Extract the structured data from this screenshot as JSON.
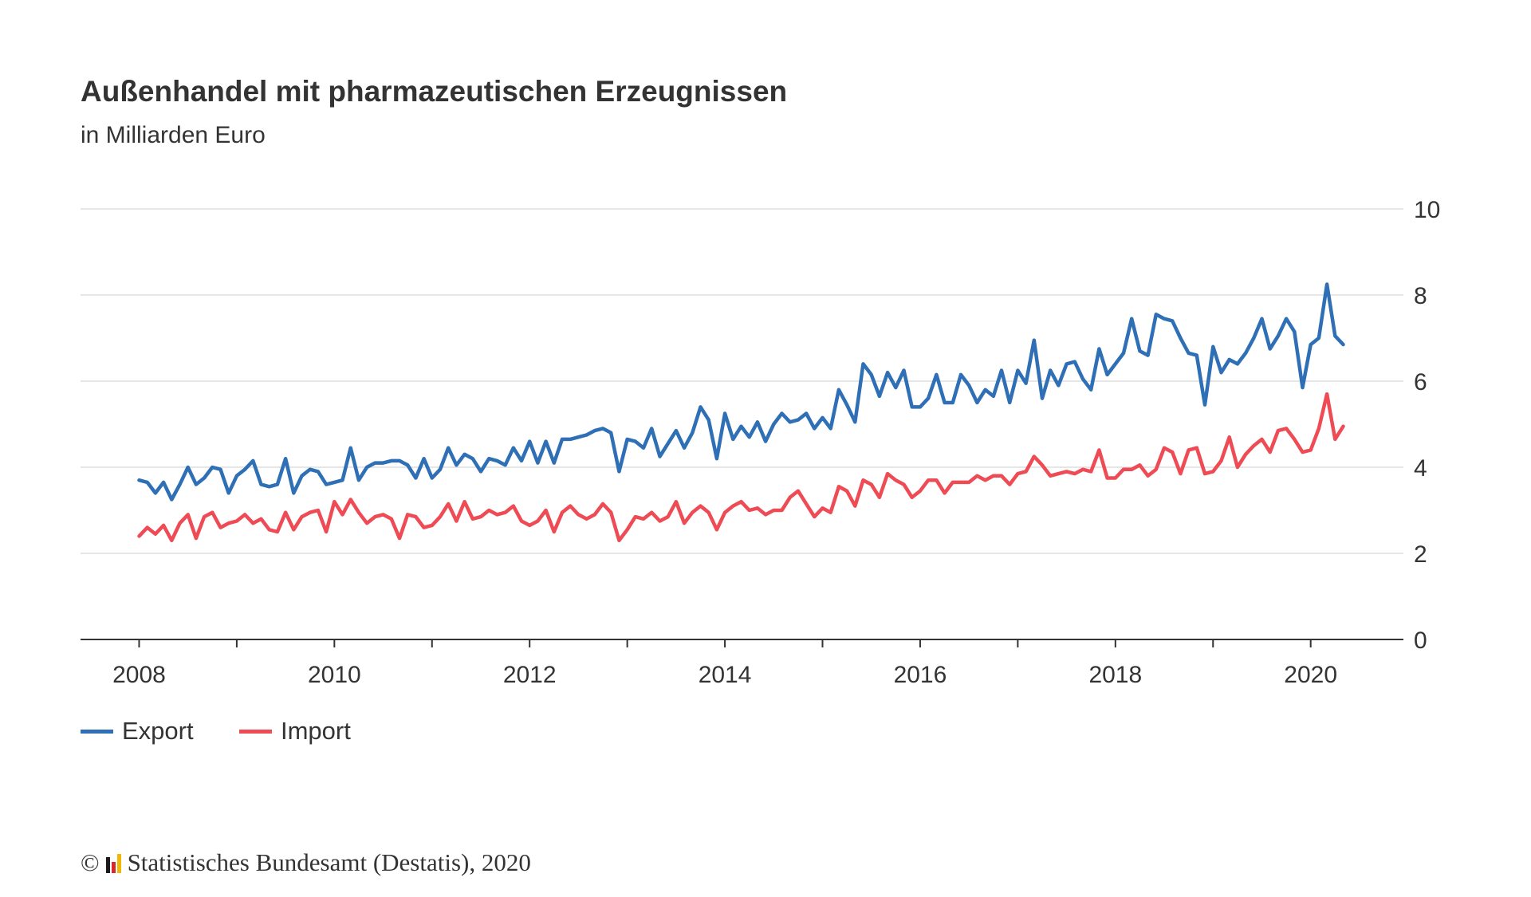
{
  "chart_data": {
    "type": "line",
    "title": "Außenhandel mit pharmazeutischen Erzeugnissen",
    "subtitle": "in Milliarden Euro",
    "xlabel": "",
    "ylabel": "",
    "x_start": "2008-01",
    "frequency": "monthly",
    "xlim": [
      2007.4,
      2020.95
    ],
    "ylim": [
      0,
      10
    ],
    "x_ticks": [
      2008,
      2010,
      2012,
      2014,
      2016,
      2018,
      2020
    ],
    "y_ticks": [
      0,
      2,
      4,
      6,
      8,
      10
    ],
    "grid": "horizontal",
    "legend_position": "bottom-left",
    "series": [
      {
        "name": "Export",
        "color": "#2e6fb5",
        "values": [
          3.7,
          3.65,
          3.4,
          3.65,
          3.25,
          3.6,
          4.0,
          3.6,
          3.75,
          4.0,
          3.95,
          3.4,
          3.8,
          3.95,
          4.15,
          3.6,
          3.55,
          3.6,
          4.2,
          3.4,
          3.8,
          3.95,
          3.9,
          3.6,
          3.65,
          3.7,
          4.45,
          3.7,
          4.0,
          4.1,
          4.1,
          4.15,
          4.15,
          4.05,
          3.75,
          4.2,
          3.75,
          3.95,
          4.45,
          4.05,
          4.3,
          4.2,
          3.9,
          4.2,
          4.15,
          4.05,
          4.45,
          4.15,
          4.6,
          4.1,
          4.6,
          4.1,
          4.65,
          4.65,
          4.7,
          4.75,
          4.85,
          4.9,
          4.8,
          3.9,
          4.65,
          4.6,
          4.45,
          4.9,
          4.25,
          4.55,
          4.85,
          4.45,
          4.8,
          5.4,
          5.1,
          4.2,
          5.25,
          4.65,
          4.95,
          4.7,
          5.05,
          4.6,
          5.0,
          5.25,
          5.05,
          5.1,
          5.25,
          4.9,
          5.15,
          4.9,
          5.8,
          5.45,
          5.05,
          6.4,
          6.15,
          5.65,
          6.2,
          5.85,
          6.25,
          5.4,
          5.4,
          5.6,
          6.15,
          5.5,
          5.5,
          6.15,
          5.9,
          5.5,
          5.8,
          5.65,
          6.25,
          5.5,
          6.25,
          5.95,
          6.95,
          5.6,
          6.25,
          5.9,
          6.4,
          6.45,
          6.05,
          5.8,
          6.75,
          6.15,
          6.4,
          6.65,
          7.45,
          6.7,
          6.6,
          7.55,
          7.45,
          7.4,
          7.0,
          6.65,
          6.6,
          5.45,
          6.8,
          6.2,
          6.5,
          6.4,
          6.65,
          7.0,
          7.45,
          6.75,
          7.05,
          7.45,
          7.15,
          5.85,
          6.85,
          7.0,
          8.25,
          7.05,
          6.85
        ]
      },
      {
        "name": "Import",
        "color": "#ee4b55",
        "values": [
          2.4,
          2.6,
          2.45,
          2.65,
          2.3,
          2.7,
          2.9,
          2.35,
          2.85,
          2.95,
          2.6,
          2.7,
          2.75,
          2.9,
          2.7,
          2.8,
          2.55,
          2.5,
          2.95,
          2.55,
          2.85,
          2.95,
          3.0,
          2.5,
          3.2,
          2.9,
          3.25,
          2.95,
          2.7,
          2.85,
          2.9,
          2.8,
          2.35,
          2.9,
          2.85,
          2.6,
          2.65,
          2.85,
          3.15,
          2.75,
          3.2,
          2.8,
          2.85,
          3.0,
          2.9,
          2.95,
          3.1,
          2.75,
          2.65,
          2.75,
          3.0,
          2.5,
          2.95,
          3.1,
          2.9,
          2.8,
          2.9,
          3.15,
          2.95,
          2.3,
          2.55,
          2.85,
          2.8,
          2.95,
          2.75,
          2.85,
          3.2,
          2.7,
          2.95,
          3.1,
          2.95,
          2.55,
          2.95,
          3.1,
          3.2,
          3.0,
          3.05,
          2.9,
          3.0,
          3.0,
          3.3,
          3.45,
          3.15,
          2.85,
          3.05,
          2.95,
          3.55,
          3.45,
          3.1,
          3.7,
          3.6,
          3.3,
          3.85,
          3.7,
          3.6,
          3.3,
          3.45,
          3.7,
          3.7,
          3.4,
          3.65,
          3.65,
          3.65,
          3.8,
          3.7,
          3.8,
          3.8,
          3.6,
          3.85,
          3.9,
          4.25,
          4.05,
          3.8,
          3.85,
          3.9,
          3.85,
          3.95,
          3.9,
          4.4,
          3.75,
          3.75,
          3.95,
          3.95,
          4.05,
          3.8,
          3.95,
          4.45,
          4.35,
          3.85,
          4.4,
          4.45,
          3.85,
          3.9,
          4.15,
          4.7,
          4.0,
          4.3,
          4.5,
          4.65,
          4.35,
          4.85,
          4.9,
          4.65,
          4.35,
          4.4,
          4.9,
          5.7,
          4.65,
          4.95
        ]
      }
    ]
  },
  "footer": {
    "copyright_symbol": "©",
    "source": "Statistisches Bundesamt (Destatis), 2020",
    "logo_icon": "destatis-logo-icon",
    "logo_colors": [
      "#1a1a1a",
      "#d62a2a",
      "#f2b705"
    ]
  }
}
